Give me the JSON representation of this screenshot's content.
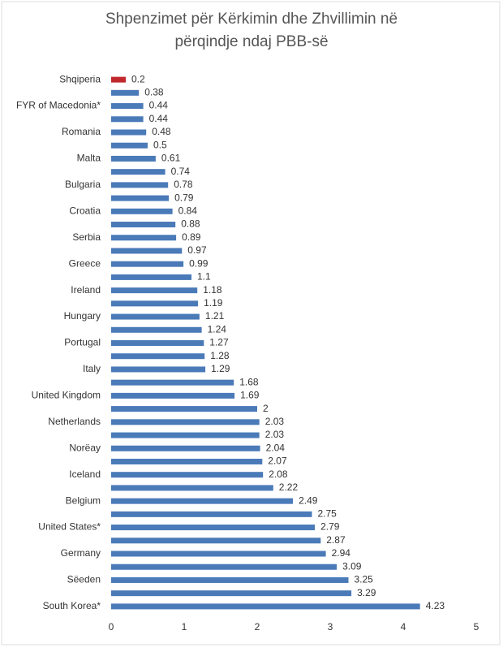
{
  "chart_data": {
    "type": "hbar",
    "title": [
      "Shpenzimet për Kërkimin dhe Zhvillimin në",
      "përqindje ndaj PBB-së"
    ],
    "categories": [
      "Shqiperia",
      null,
      "FYR of Macedonia*",
      null,
      "Romania",
      null,
      "Malta",
      null,
      "Bulgaria",
      null,
      "Croatia",
      null,
      "Serbia",
      null,
      "Greece",
      null,
      "Ireland",
      null,
      "Hungary",
      null,
      "Portugal",
      null,
      "Italy",
      null,
      "United Kingdom",
      null,
      "Netherlands",
      null,
      "Norëay",
      null,
      "Iceland",
      null,
      "Belgium",
      null,
      "United States*",
      null,
      "Germany",
      null,
      "Sëeden",
      null,
      "South Korea*"
    ],
    "values": [
      0.2,
      0.38,
      0.44,
      0.44,
      0.48,
      0.5,
      0.61,
      0.74,
      0.78,
      0.79,
      0.84,
      0.88,
      0.89,
      0.97,
      0.99,
      1.1,
      1.18,
      1.19,
      1.21,
      1.24,
      1.27,
      1.28,
      1.29,
      1.68,
      1.69,
      2,
      2.03,
      2.03,
      2.04,
      2.07,
      2.08,
      2.22,
      2.49,
      2.75,
      2.79,
      2.87,
      2.94,
      3.09,
      3.25,
      3.29,
      4.23
    ],
    "colors": [
      "#c0282d",
      "#4a7ab8",
      "#4a7ab8",
      "#4a7ab8",
      "#4a7ab8",
      "#4a7ab8",
      "#4a7ab8",
      "#4a7ab8",
      "#4a7ab8",
      "#4a7ab8",
      "#4a7ab8",
      "#4a7ab8",
      "#4a7ab8",
      "#4a7ab8",
      "#4a7ab8",
      "#4a7ab8",
      "#4a7ab8",
      "#4a7ab8",
      "#4a7ab8",
      "#4a7ab8",
      "#4a7ab8",
      "#4a7ab8",
      "#4a7ab8",
      "#4a7ab8",
      "#4a7ab8",
      "#4a7ab8",
      "#4a7ab8",
      "#4a7ab8",
      "#4a7ab8",
      "#4a7ab8",
      "#4a7ab8",
      "#4a7ab8",
      "#4a7ab8",
      "#4a7ab8",
      "#4a7ab8",
      "#4a7ab8",
      "#4a7ab8",
      "#4a7ab8",
      "#4a7ab8",
      "#4a7ab8",
      "#4a7ab8"
    ],
    "xlim": [
      0,
      5
    ],
    "xticks": [
      0,
      1,
      2,
      3,
      4,
      5
    ],
    "grid": false
  }
}
